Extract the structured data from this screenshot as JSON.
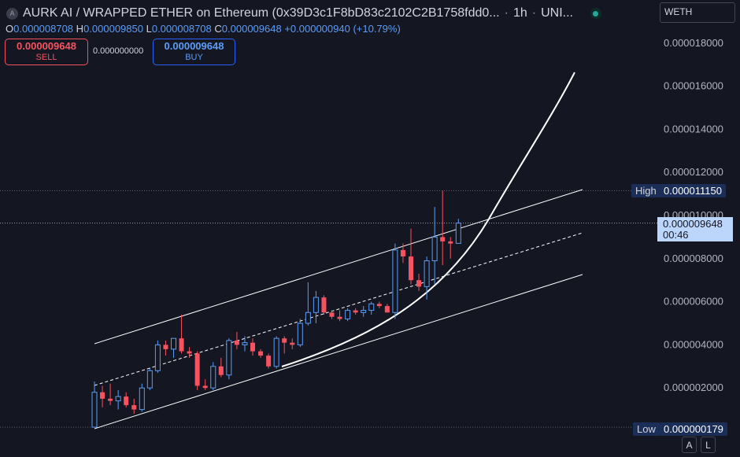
{
  "header": {
    "symbol_initial": "A",
    "title": "AURK AI / WRAPPED ETHER on Ethereum (0x39D3c1F8bD83c2102C2B1758fdd0...",
    "separator": "·",
    "interval": "1h",
    "exchange": "UNI..."
  },
  "ohlc": {
    "o_label": "O",
    "o": "0.000008708",
    "h_label": "H",
    "h": "0.000009850",
    "l_label": "L",
    "l": "0.000008708",
    "c_label": "C",
    "c": "0.000009648",
    "change": "+0.000000940 (+10.79%)"
  },
  "trade": {
    "sell_price": "0.000009648",
    "sell_label": "SELL",
    "spread": "0.000000000",
    "buy_price": "0.000009648",
    "buy_label": "BUY"
  },
  "currency_select": "WETH",
  "price_axis": {
    "high_label": "High",
    "high_value": "0.000011150",
    "low_label": "Low",
    "low_value": "0.000000179",
    "current_value": "0.000009648",
    "countdown": "00:46"
  },
  "buttons": {
    "auto": "A",
    "log": "L"
  },
  "colors": {
    "up": "#5b9cf6",
    "down": "#f7525f",
    "background": "#141722",
    "drawing": "#ffffff"
  },
  "chart_data": {
    "type": "candlestick",
    "yticks": [
      2e-06,
      4e-06,
      6e-06,
      8e-06,
      1e-05,
      1.2e-05,
      1.4e-05,
      1.6e-05,
      1.8e-05
    ],
    "ytick_labels": [
      "0.000002000",
      "0.000004000",
      "0.000006000",
      "0.000008000",
      "0.000010000",
      "0.000012000",
      "0.000014000",
      "0.000016000",
      "0.000018000"
    ],
    "ylim": [
      0,
      1.95e-05
    ],
    "high": 1.115e-05,
    "low": 1.79e-07,
    "last": 9.648e-06,
    "candles": [
      {
        "o": 1.8e-07,
        "h": 2.3e-06,
        "l": 1.8e-07,
        "c": 1.8e-06
      },
      {
        "o": 1.8e-06,
        "h": 2.1e-06,
        "l": 1.1e-06,
        "c": 1.5e-06
      },
      {
        "o": 1.5e-06,
        "h": 2.2e-06,
        "l": 1.2e-06,
        "c": 1.4e-06
      },
      {
        "o": 1.4e-06,
        "h": 1.9e-06,
        "l": 1e-06,
        "c": 1.6e-06
      },
      {
        "o": 1.6e-06,
        "h": 1.8e-06,
        "l": 1.1e-06,
        "c": 1.2e-06
      },
      {
        "o": 1.2e-06,
        "h": 1.5e-06,
        "l": 8e-07,
        "c": 1e-06
      },
      {
        "o": 1e-06,
        "h": 2.2e-06,
        "l": 9e-07,
        "c": 2e-06
      },
      {
        "o": 2e-06,
        "h": 2.9e-06,
        "l": 1.9e-06,
        "c": 2.8e-06
      },
      {
        "o": 2.8e-06,
        "h": 4.2e-06,
        "l": 2.7e-06,
        "c": 4e-06
      },
      {
        "o": 4e-06,
        "h": 4.2e-06,
        "l": 3.5e-06,
        "c": 3.8e-06
      },
      {
        "o": 3.8e-06,
        "h": 4.3e-06,
        "l": 3.4e-06,
        "c": 4.3e-06
      },
      {
        "o": 4.3e-06,
        "h": 5.4e-06,
        "l": 3.6e-06,
        "c": 3.7e-06
      },
      {
        "o": 3.7e-06,
        "h": 3.9e-06,
        "l": 3.4e-06,
        "c": 3.6e-06
      },
      {
        "o": 3.6e-06,
        "h": 3.7e-06,
        "l": 1.9e-06,
        "c": 2.1e-06
      },
      {
        "o": 2.1e-06,
        "h": 2.4e-06,
        "l": 1.9e-06,
        "c": 2e-06
      },
      {
        "o": 2e-06,
        "h": 3.2e-06,
        "l": 1.9e-06,
        "c": 3e-06
      },
      {
        "o": 3e-06,
        "h": 3.4e-06,
        "l": 2.5e-06,
        "c": 2.6e-06
      },
      {
        "o": 2.6e-06,
        "h": 4.3e-06,
        "l": 2.4e-06,
        "c": 4.2e-06
      },
      {
        "o": 4.2e-06,
        "h": 4.6e-06,
        "l": 3.8e-06,
        "c": 4e-06
      },
      {
        "o": 4e-06,
        "h": 4.4e-06,
        "l": 3.7e-06,
        "c": 4.1e-06
      },
      {
        "o": 4.1e-06,
        "h": 4.3e-06,
        "l": 3.5e-06,
        "c": 3.7e-06
      },
      {
        "o": 3.7e-06,
        "h": 3.8e-06,
        "l": 3.4e-06,
        "c": 3.5e-06
      },
      {
        "o": 3.5e-06,
        "h": 3.6e-06,
        "l": 2.9e-06,
        "c": 3e-06
      },
      {
        "o": 3e-06,
        "h": 4.4e-06,
        "l": 2.9e-06,
        "c": 4.3e-06
      },
      {
        "o": 4.3e-06,
        "h": 4.4e-06,
        "l": 3.6e-06,
        "c": 4.1e-06
      },
      {
        "o": 4.1e-06,
        "h": 4.3e-06,
        "l": 3.8e-06,
        "c": 4e-06
      },
      {
        "o": 4e-06,
        "h": 5.2e-06,
        "l": 3.9e-06,
        "c": 5e-06
      },
      {
        "o": 5e-06,
        "h": 6.9e-06,
        "l": 4.9e-06,
        "c": 5.5e-06
      },
      {
        "o": 5.5e-06,
        "h": 6.5e-06,
        "l": 5e-06,
        "c": 6.2e-06
      },
      {
        "o": 6.2e-06,
        "h": 6.3e-06,
        "l": 5.4e-06,
        "c": 5.5e-06
      },
      {
        "o": 5.5e-06,
        "h": 5.6e-06,
        "l": 5.2e-06,
        "c": 5.3e-06
      },
      {
        "o": 5.3e-06,
        "h": 5.6e-06,
        "l": 5.1e-06,
        "c": 5.2e-06
      },
      {
        "o": 5.2e-06,
        "h": 5.7e-06,
        "l": 5.1e-06,
        "c": 5.6e-06
      },
      {
        "o": 5.6e-06,
        "h": 5.7e-06,
        "l": 5.4e-06,
        "c": 5.5e-06
      },
      {
        "o": 5.5e-06,
        "h": 5.8e-06,
        "l": 5.3e-06,
        "c": 5.6e-06
      },
      {
        "o": 5.6e-06,
        "h": 6e-06,
        "l": 5.4e-06,
        "c": 5.9e-06
      },
      {
        "o": 5.9e-06,
        "h": 6e-06,
        "l": 5.7e-06,
        "c": 5.8e-06
      },
      {
        "o": 5.8e-06,
        "h": 5.9e-06,
        "l": 5.5e-06,
        "c": 5.5e-06
      },
      {
        "o": 5.5e-06,
        "h": 8.7e-06,
        "l": 5.2e-06,
        "c": 8.4e-06
      },
      {
        "o": 8.4e-06,
        "h": 8.7e-06,
        "l": 7.8e-06,
        "c": 8.1e-06
      },
      {
        "o": 8.1e-06,
        "h": 9.4e-06,
        "l": 6.8e-06,
        "c": 7e-06
      },
      {
        "o": 7e-06,
        "h": 7.3e-06,
        "l": 6.5e-06,
        "c": 6.7e-06
      },
      {
        "o": 6.7e-06,
        "h": 8.1e-06,
        "l": 6.1e-06,
        "c": 7.9e-06
      },
      {
        "o": 7.9e-06,
        "h": 1.04e-05,
        "l": 6.8e-06,
        "c": 9e-06
      },
      {
        "o": 9e-06,
        "h": 1.115e-05,
        "l": 7.7e-06,
        "c": 8.8e-06
      },
      {
        "o": 8.8e-06,
        "h": 9e-06,
        "l": 8e-06,
        "c": 8.7e-06
      },
      {
        "o": 8.708e-06,
        "h": 9.85e-06,
        "l": 8.708e-06,
        "c": 9.648e-06
      }
    ]
  }
}
